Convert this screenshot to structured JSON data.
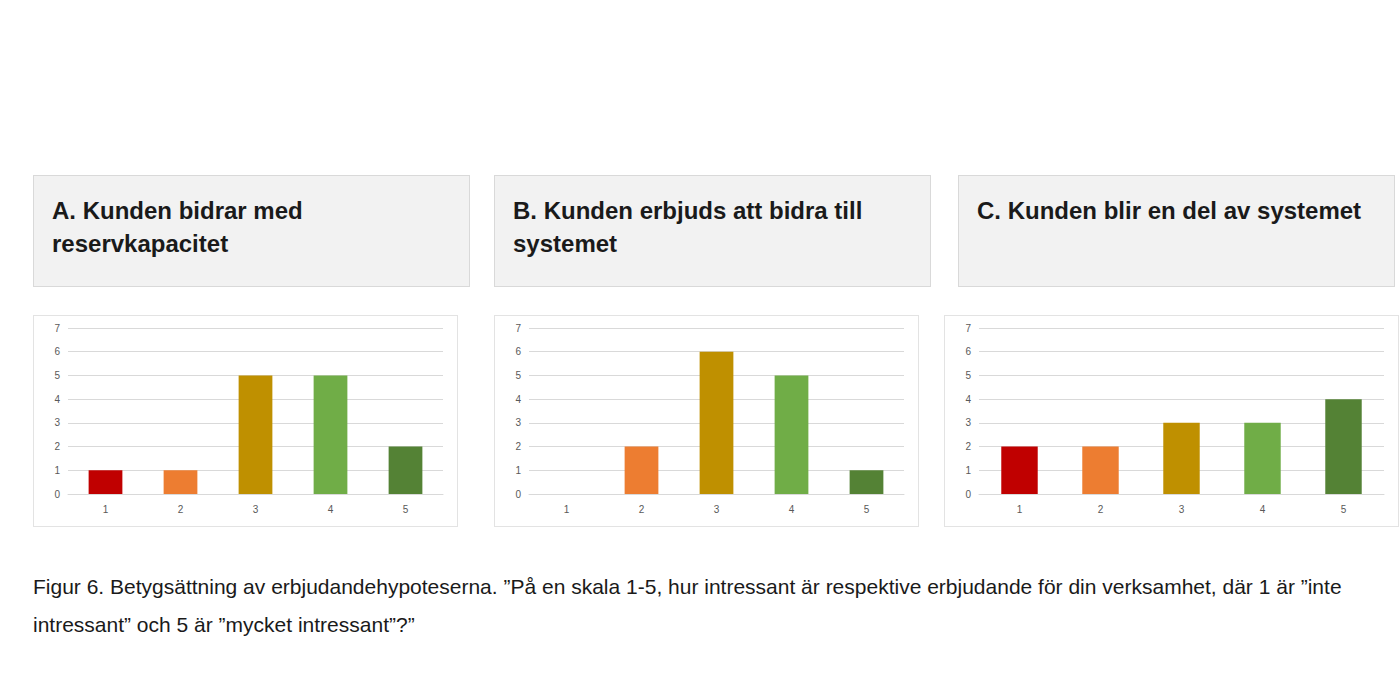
{
  "chart_data": [
    {
      "type": "bar",
      "title": "A. Kunden bidrar med reservkapacitet",
      "categories": [
        "1",
        "2",
        "3",
        "4",
        "5"
      ],
      "values": [
        1,
        1,
        5,
        5,
        2
      ],
      "colors": [
        "#c00000",
        "#ed7d31",
        "#bf9000",
        "#70ad47",
        "#548235"
      ],
      "ylim": [
        0,
        7
      ],
      "yticks": [
        0,
        1,
        2,
        3,
        4,
        5,
        6,
        7
      ],
      "grid": true
    },
    {
      "type": "bar",
      "title": "B. Kunden erbjuds att bidra till systemet",
      "categories": [
        "1",
        "2",
        "3",
        "4",
        "5"
      ],
      "values": [
        0,
        2,
        6,
        5,
        1
      ],
      "colors": [
        "#c00000",
        "#ed7d31",
        "#bf9000",
        "#70ad47",
        "#548235"
      ],
      "ylim": [
        0,
        7
      ],
      "yticks": [
        0,
        1,
        2,
        3,
        4,
        5,
        6,
        7
      ],
      "grid": true
    },
    {
      "type": "bar",
      "title": "C. Kunden blir en del av systemet",
      "categories": [
        "1",
        "2",
        "3",
        "4",
        "5"
      ],
      "values": [
        2,
        2,
        3,
        3,
        4
      ],
      "colors": [
        "#c00000",
        "#ed7d31",
        "#bf9000",
        "#70ad47",
        "#548235"
      ],
      "ylim": [
        0,
        7
      ],
      "yticks": [
        0,
        1,
        2,
        3,
        4,
        5,
        6,
        7
      ],
      "grid": true
    }
  ],
  "caption": "Figur 6. Betygsättning av erbjudandehypoteserna. ”På en skala 1-5, hur intressant är respektive erbjudande för din verksamhet, där 1 är ”inte intressant” och 5 är ”mycket intressant”?”"
}
